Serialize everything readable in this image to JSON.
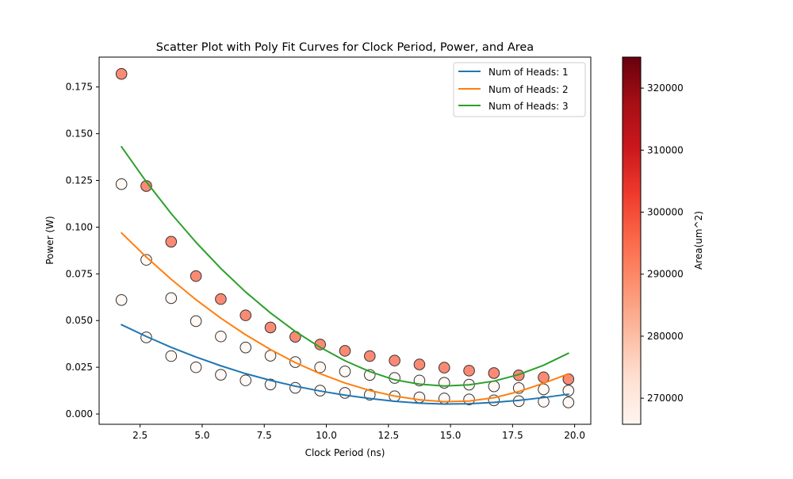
{
  "chart_data": {
    "type": "scatter",
    "title": "Scatter Plot with Poly Fit Curves for Clock Period, Power, and Area",
    "xlabel": "Clock Period (ns)",
    "ylabel": "Power (W)",
    "xlim": [
      0.85,
      20.65
    ],
    "ylim": [
      -0.0055,
      0.191
    ],
    "x_ticks": [
      2.5,
      5.0,
      7.5,
      10.0,
      12.5,
      15.0,
      17.5,
      20.0
    ],
    "x_tick_labels": [
      "2.5",
      "5.0",
      "7.5",
      "10.0",
      "12.5",
      "15.0",
      "17.5",
      "20.0"
    ],
    "y_ticks": [
      0.0,
      0.025,
      0.05,
      0.075,
      0.1,
      0.125,
      0.15,
      0.175
    ],
    "y_tick_labels": [
      "0.000",
      "0.025",
      "0.050",
      "0.075",
      "0.100",
      "0.125",
      "0.150",
      "0.175"
    ],
    "grid": false,
    "legend_position": "upper-right",
    "x": [
      1.75,
      2.75,
      3.75,
      4.75,
      5.75,
      6.75,
      7.75,
      8.75,
      9.75,
      10.75,
      11.75,
      12.75,
      13.75,
      14.75,
      15.75,
      16.75,
      17.75,
      18.75,
      19.75
    ],
    "series": [
      {
        "name": "Num of Heads: 1",
        "color": "#1f77b4",
        "area": 265800,
        "values": [
          0.061,
          0.041,
          0.031,
          0.025,
          0.021,
          0.018,
          0.0158,
          0.014,
          0.0125,
          0.0113,
          0.0103,
          0.0095,
          0.0089,
          0.0083,
          0.0078,
          0.0073,
          0.0069,
          0.0066,
          0.0062
        ],
        "fit": [
          0.0478,
          0.0415,
          0.0357,
          0.0305,
          0.0258,
          0.0216,
          0.018,
          0.0149,
          0.0123,
          0.0101,
          0.0083,
          0.0068,
          0.0058,
          0.0053,
          0.0055,
          0.0062,
          0.0073,
          0.0088,
          0.0106
        ]
      },
      {
        "name": "Num of Heads: 2",
        "color": "#ff7f0e",
        "area": 265800,
        "values": [
          0.123,
          0.0825,
          0.062,
          0.0497,
          0.0415,
          0.0356,
          0.0312,
          0.0278,
          0.025,
          0.0228,
          0.0209,
          0.0193,
          0.0179,
          0.0167,
          0.0157,
          0.0148,
          0.0139,
          0.0132,
          0.0125
        ],
        "fit": [
          0.0969,
          0.084,
          0.0721,
          0.0612,
          0.0513,
          0.0424,
          0.0345,
          0.0275,
          0.0216,
          0.0166,
          0.0126,
          0.0096,
          0.0076,
          0.0066,
          0.0069,
          0.0087,
          0.012,
          0.0165,
          0.0215
        ]
      },
      {
        "name": "Num of Heads: 3",
        "color": "#2ca02c",
        "area": 296500,
        "values": [
          0.182,
          0.122,
          0.0922,
          0.0738,
          0.0615,
          0.0528,
          0.0463,
          0.0413,
          0.0372,
          0.0338,
          0.031,
          0.0286,
          0.0265,
          0.0248,
          0.0232,
          0.0219,
          0.0207,
          0.0196,
          0.0186
        ],
        "fit": [
          0.143,
          0.1243,
          0.1073,
          0.0919,
          0.0779,
          0.0653,
          0.0541,
          0.0442,
          0.0357,
          0.0285,
          0.0227,
          0.0183,
          0.016,
          0.015,
          0.0156,
          0.0176,
          0.0211,
          0.0261,
          0.0325
        ]
      }
    ],
    "colorbar": {
      "label": "Area(um^2)",
      "min": 265800,
      "max": 325000,
      "colormap": "Reds",
      "ticks": [
        270000,
        280000,
        290000,
        300000,
        310000,
        320000
      ],
      "tick_labels": [
        "270000",
        "280000",
        "290000",
        "300000",
        "310000",
        "320000"
      ]
    }
  }
}
